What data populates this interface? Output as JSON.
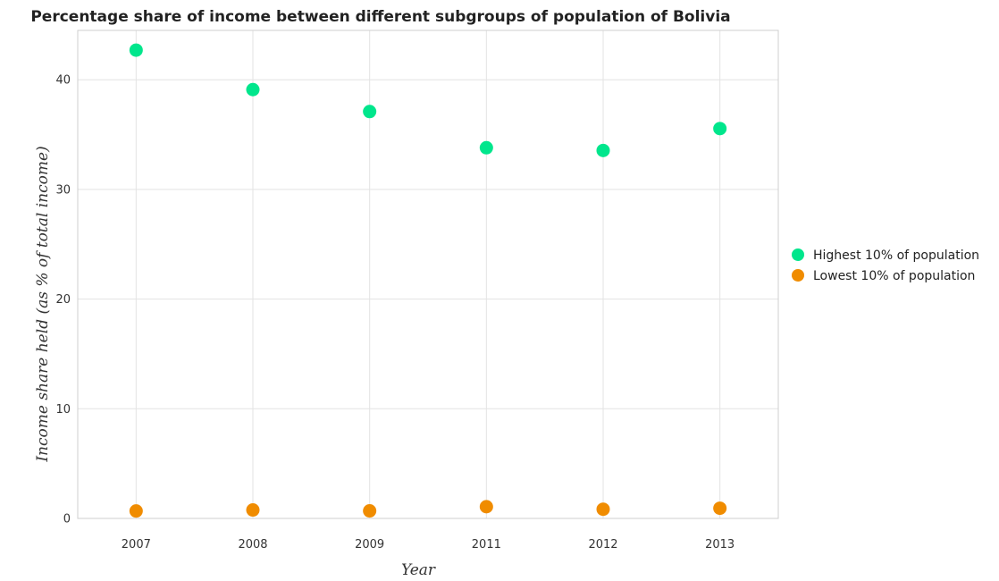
{
  "chart_data": {
    "type": "scatter",
    "title": "Percentage share of income between different subgroups of population of Bolivia",
    "xlabel": "Year",
    "ylabel": "Income share held (as % of total income)",
    "categories": [
      "2007",
      "2008",
      "2009",
      "2011",
      "2012",
      "2013"
    ],
    "yticks": [
      "0",
      "10",
      "20",
      "30",
      "40"
    ],
    "ylim": [
      0,
      44.5
    ],
    "grid": true,
    "legend_position": "right",
    "series": [
      {
        "name": "Highest 10% of population",
        "color": "#00e68c",
        "values": [
          42.7,
          39.1,
          37.1,
          33.8,
          33.55,
          35.55
        ]
      },
      {
        "name": "Lowest 10% of population",
        "color": "#f08c00",
        "values": [
          0.68,
          0.77,
          0.69,
          1.07,
          0.84,
          0.93
        ]
      }
    ]
  }
}
